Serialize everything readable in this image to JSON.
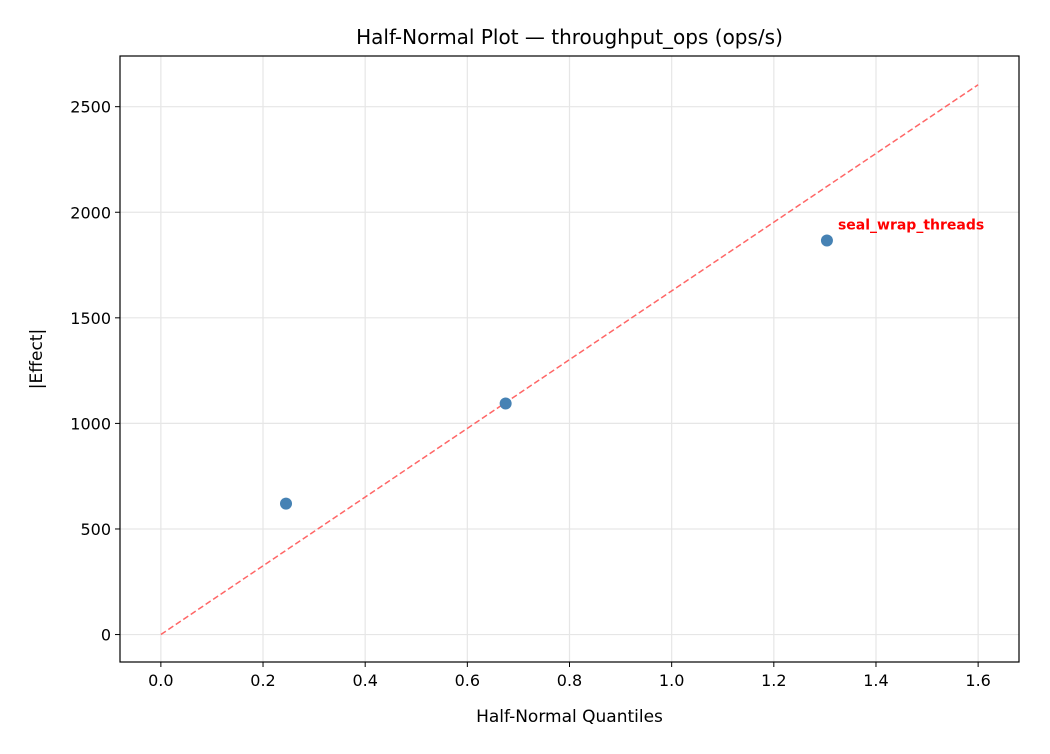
{
  "chart_data": {
    "type": "scatter",
    "title": "Half-Normal Plot — throughput_ops (ops/s)",
    "xlabel": "Half-Normal Quantiles",
    "ylabel": "|Effect|",
    "xlim": [
      -0.08,
      1.68
    ],
    "ylim": [
      -130,
      2740
    ],
    "xticks": [
      0.0,
      0.2,
      0.4,
      0.6,
      0.8,
      1.0,
      1.2,
      1.4,
      1.6
    ],
    "xtick_labels": [
      "0.0",
      "0.2",
      "0.4",
      "0.6",
      "0.8",
      "1.0",
      "1.2",
      "1.4",
      "1.6"
    ],
    "yticks": [
      0,
      500,
      1000,
      1500,
      2000,
      2500
    ],
    "ytick_labels": [
      "0",
      "500",
      "1000",
      "1500",
      "2000",
      "2500"
    ],
    "grid": true,
    "points": [
      {
        "x": 0.245,
        "y": 620,
        "label": ""
      },
      {
        "x": 0.675,
        "y": 1094,
        "label": ""
      },
      {
        "x": 1.304,
        "y": 1866,
        "label": "seal_wrap_threads"
      }
    ],
    "reference_line": {
      "x": [
        0.0,
        1.6
      ],
      "y": [
        0,
        2604
      ],
      "style": "dashed"
    },
    "colors": {
      "points": "#4682b4",
      "reference_line": "#ff6666",
      "annotation": "#ff0000",
      "grid": "#e6e6e6"
    }
  }
}
